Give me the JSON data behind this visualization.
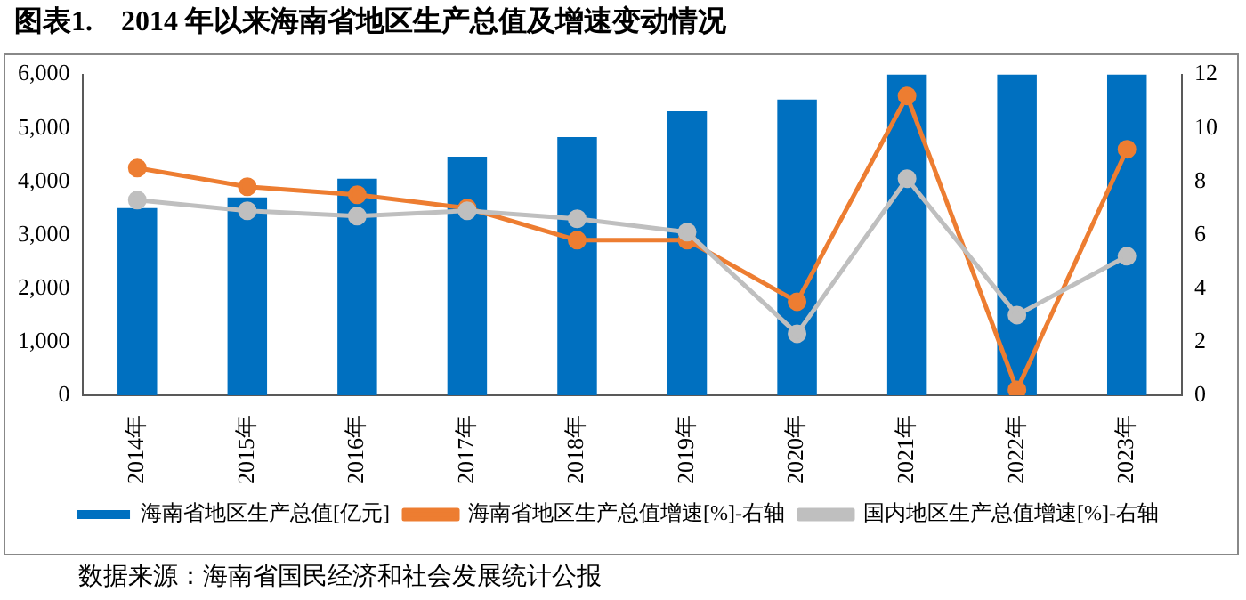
{
  "chart_data": {
    "type": "bar",
    "title": "图表1.    2014 年以来海南省地区生产总值及增速变动情况",
    "categories": [
      "2014年",
      "2015年",
      "2016年",
      "2017年",
      "2018年",
      "2019年",
      "2020年",
      "2021年",
      "2022年",
      "2023年"
    ],
    "series": [
      {
        "name": "海南省地区生产总值[亿元]",
        "color": "#0070c0",
        "values": [
          3500,
          3700,
          4050,
          4460,
          4830,
          5310,
          5530,
          6000,
          6000,
          6000
        ]
      },
      {
        "name": "海南省地区生产总值增速[%]-右轴",
        "type": "line",
        "axis": "y2",
        "color": "#ed7d31",
        "values": [
          8.5,
          7.8,
          7.5,
          7.0,
          5.8,
          5.8,
          3.5,
          11.2,
          0.2,
          9.2
        ]
      },
      {
        "name": "国内地区生产总值增速[%]-右轴",
        "type": "line",
        "axis": "y2",
        "color": "#bfbfbf",
        "values": [
          7.3,
          6.9,
          6.7,
          6.9,
          6.6,
          6.1,
          2.3,
          8.1,
          3.0,
          5.2
        ]
      }
    ],
    "ylim": [
      0,
      6000
    ],
    "yticks": [
      0,
      {
        "value": 1000,
        "label": "1,000"
      },
      {
        "value": 2000,
        "label": "2,000"
      },
      {
        "value": 3000,
        "label": "3,000"
      },
      {
        "value": 4000,
        "label": "4,000"
      },
      {
        "value": 5000,
        "label": "5,000"
      },
      {
        "value": 6000,
        "label": "6,000"
      }
    ],
    "y2lim": [
      0,
      12
    ],
    "y2ticks": [
      0,
      2,
      4,
      6,
      8,
      10,
      12
    ],
    "marker": "circle",
    "grid": false,
    "legend": "bottom",
    "annotations": [
      "数据来源：海南省国民经济和社会发展统计公报"
    ]
  }
}
